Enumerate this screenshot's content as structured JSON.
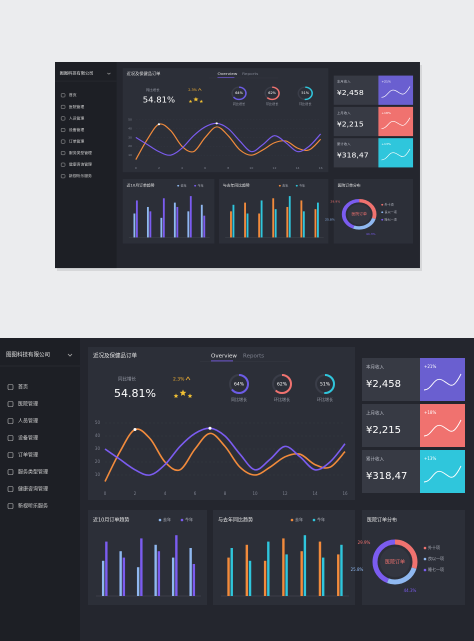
{
  "sidebar": {
    "company": "图图科技有限公司",
    "menu": [
      "首页",
      "医院管理",
      "人员管理",
      "设备管理",
      "订单管理",
      "服务类型管理",
      "健康咨询管理",
      "新视听乐服务"
    ]
  },
  "overview": {
    "title": "近况及保健品订单",
    "tabs": [
      "Overview",
      "Reports"
    ],
    "growth_label": "同比增长",
    "growth_value": "54.81%",
    "change": "2.3%",
    "gauges": [
      {
        "value": 64,
        "value_label": "64%",
        "caption": "同比增长",
        "color": "#6c5ce7"
      },
      {
        "value": 62,
        "value_label": "62%",
        "caption": "环比增长",
        "color": "#f0726f"
      },
      {
        "value": 51,
        "value_label": "51%",
        "caption": "环比增长",
        "color": "#2fc6dc"
      }
    ],
    "chart": {
      "type": "line",
      "x": [
        0,
        1,
        2,
        3,
        4,
        5,
        6,
        7,
        8,
        9,
        10,
        11,
        12,
        13,
        14,
        15,
        16
      ],
      "xlim": [
        0,
        16
      ],
      "xticks": [
        0,
        2,
        4,
        6,
        8,
        10,
        12,
        14,
        16
      ],
      "ylim": [
        0,
        60
      ],
      "yticks": [
        10,
        20,
        30,
        40,
        50
      ],
      "series": [
        {
          "color": "#f28b3c",
          "values": [
            5,
            28,
            45,
            38,
            20,
            14,
            30,
            42,
            32,
            16,
            10,
            16,
            24,
            26,
            18,
            16,
            28
          ]
        },
        {
          "color": "#7b5cf0",
          "values": [
            30,
            22,
            14,
            10,
            18,
            32,
            42,
            46,
            40,
            26,
            14,
            22,
            32,
            24,
            14,
            20,
            34
          ]
        }
      ]
    }
  },
  "cards": [
    {
      "label": "本月收入",
      "value": "¥2,458",
      "change": "+21%",
      "color": "#6a5fd0"
    },
    {
      "label": "上月收入",
      "value": "¥2,215",
      "change": "+18%",
      "color": "#f0726f"
    },
    {
      "label": "累计收入",
      "value": "¥318,47",
      "change": "+13%",
      "color": "#2fc6dc"
    }
  ],
  "trend": {
    "type": "bar",
    "title": "近10月订单趋势",
    "categories": [
      null,
      null,
      null,
      null,
      null,
      null
    ],
    "ylim": [
      0,
      100
    ],
    "series": [
      {
        "name": "去年",
        "color": "#8fb8f0",
        "values": [
          55,
          70,
          45,
          80,
          60,
          75
        ]
      },
      {
        "name": "今年",
        "color": "#7b5cf0",
        "values": [
          85,
          60,
          90,
          70,
          95,
          50
        ]
      }
    ]
  },
  "compare": {
    "type": "bar",
    "title": "与去年同比趋势",
    "categories": [
      null,
      null,
      null,
      null,
      null,
      null,
      null
    ],
    "ylim": [
      0,
      100
    ],
    "series": [
      {
        "name": "去年",
        "color": "#f28b3c",
        "values": [
          60,
          80,
          55,
          90,
          70,
          85,
          65
        ]
      },
      {
        "name": "今年",
        "color": "#2fc6dc",
        "values": [
          75,
          55,
          85,
          65,
          95,
          60,
          80
        ]
      }
    ]
  },
  "distribution": {
    "type": "pie",
    "title": "医院订单分布",
    "center_label": "医院订单",
    "categories": [
      "外十项",
      "良以一项",
      "睡七一项"
    ],
    "values": [
      29.9,
      25.8,
      44.3
    ],
    "value_labels": [
      "29.9%",
      "25.8%",
      "44.3%"
    ],
    "colors": [
      "#f0726f",
      "#8fb8f0",
      "#7b5cf0"
    ]
  }
}
